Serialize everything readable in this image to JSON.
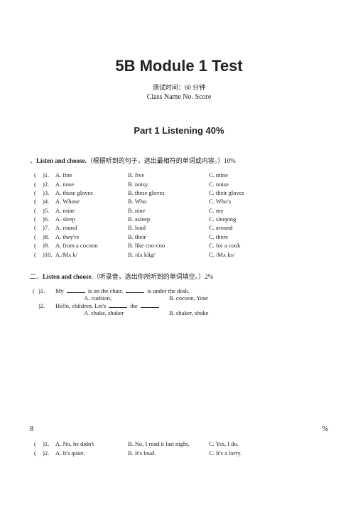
{
  "title": "5B Module 1 Test",
  "subtitle": "测试时间：60 分钟",
  "classline": "Class Name No. Score",
  "part1_title": "Part 1 Listening 40%",
  "section1": {
    "prefix": "、",
    "label_bold": "Listen and choose.",
    "label_rest": "（根据听到的句子，选出最相符的单词或内容。）10%"
  },
  "q1": [
    {
      "n": ")1.",
      "a": "A. fine",
      "b": "B. five",
      "c": "C. mine"
    },
    {
      "n": ")2.",
      "a": "A. nose",
      "b": "B. noisy",
      "c": "C. noise"
    },
    {
      "n": ")3.",
      "a": "A. those gloves",
      "b": "B. these gloves",
      "c": "C. their gloves"
    },
    {
      "n": ")4.",
      "a": "A. Whose",
      "b": "B. Who",
      "c": "C. Who's"
    },
    {
      "n": ")5.",
      "a": "A. mine",
      "b": "B. nine",
      "c": "C. my"
    },
    {
      "n": ")6.",
      "a": "A. sleep",
      "b": "B. asleep",
      "c": "C. sleeping"
    },
    {
      "n": ")7.",
      "a": "A. round",
      "b": "B. loud",
      "c": "C. around"
    },
    {
      "n": ")8.",
      "a": "A. they're",
      "b": "B. their",
      "c": "C. there"
    },
    {
      "n": ")9.",
      "a": " A. from a cocoon",
      "b": "B. like coo-coo",
      "c": " C. for a cook"
    },
    {
      "n": ")10.",
      "a": "A./Mʌ k/",
      "b": "B. /dʌ klig/",
      "c": "C. /Mʌ ks/"
    }
  ],
  "section2": {
    "prefix": "二、",
    "label_bold": "Listen and choose.",
    "label_rest": "（听录音，选出你所听到的单词填空。）2%"
  },
  "fill": {
    "row1": {
      "paren": "(",
      "n": ")1.",
      "pre": "My",
      "mid": "is on the chair.",
      "end": "is under the desk."
    },
    "row1b": {
      "a": "A. cushion,",
      "b": "B. cocoon, Your"
    },
    "row2": {
      "n": ")2.",
      "pre": "Hello, children. Let's",
      "mid": "the"
    },
    "row2b": {
      "a": "A. shake, shaker",
      "b": "B. shaker, shake"
    }
  },
  "bottom_left": "8",
  "bottom_right": "%",
  "q3": [
    {
      "p": "(",
      "n": ")1.",
      "a": "A. No, he didn't",
      "b": "B. No, I read it last night.",
      "c": "C. Yes, I do."
    },
    {
      "p": "(",
      "n": ")2.",
      "a": "A. It's quiet.",
      "b": "B. It's loud.",
      "c": "C. It's a lorry."
    }
  ]
}
